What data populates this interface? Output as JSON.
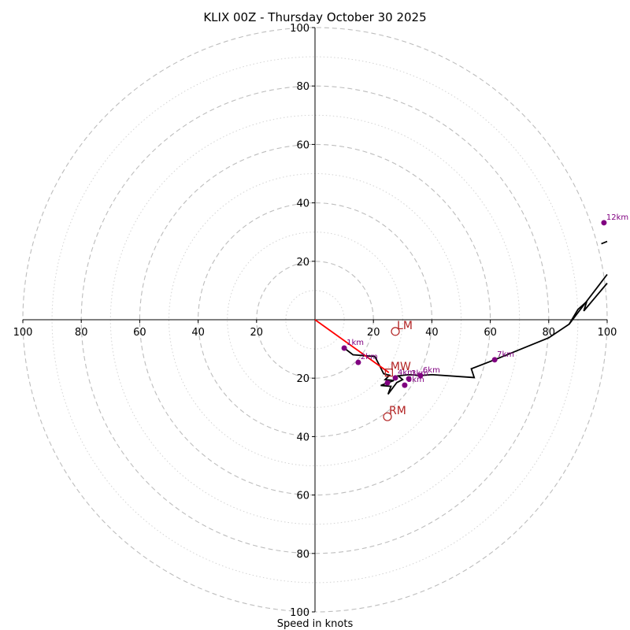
{
  "chart_data": {
    "type": "line",
    "subtype": "hodograph",
    "title": "KLIX 00Z - Thursday October 30 2025",
    "xlabel": "Speed in knots",
    "ylabel": "",
    "xlim": [
      -100,
      100
    ],
    "ylim": [
      -100,
      100
    ],
    "rings_dashed": [
      20,
      40,
      60,
      80,
      100
    ],
    "rings_dotted": [
      10,
      30,
      50,
      70,
      90
    ],
    "x_tick_labels": [
      "100",
      "80",
      "60",
      "40",
      "20",
      "20",
      "40",
      "60",
      "80",
      "100"
    ],
    "y_tick_labels": [
      "100",
      "80",
      "60",
      "40",
      "20",
      "20",
      "40",
      "60",
      "80",
      "100"
    ],
    "x_ticks": [
      -100,
      -80,
      -60,
      -40,
      -20,
      20,
      40,
      60,
      80,
      100
    ],
    "y_ticks": [
      100,
      80,
      60,
      40,
      20,
      -20,
      -40,
      -60,
      -80,
      -100
    ],
    "trace": {
      "name": "wind profile",
      "color": "#000000",
      "points": [
        [
          10.0,
          -9.7
        ],
        [
          13.0,
          -12.0
        ],
        [
          20.5,
          -12.6
        ],
        [
          22.0,
          -15.5
        ],
        [
          23.5,
          -18.5
        ],
        [
          25.5,
          -19.0
        ],
        [
          24.0,
          -20.5
        ],
        [
          27.0,
          -20.8
        ],
        [
          22.5,
          -22.5
        ],
        [
          26.0,
          -22.8
        ],
        [
          25.0,
          -25.5
        ],
        [
          28.0,
          -21.5
        ],
        [
          30.0,
          -20.5
        ],
        [
          28.5,
          -19.2
        ],
        [
          32.0,
          -18.8
        ],
        [
          36.1,
          -19.1
        ],
        [
          40.0,
          -18.8
        ],
        [
          54.5,
          -19.8
        ],
        [
          53.5,
          -16.8
        ],
        [
          61.5,
          -13.7
        ],
        [
          80.0,
          -6.2
        ],
        [
          87.0,
          -1.5
        ],
        [
          90.0,
          3.5
        ],
        [
          93.0,
          6.2
        ],
        [
          92.0,
          3.0
        ],
        [
          100.0,
          12.5
        ]
      ],
      "upper_points": [
        [
          87.0,
          -1.5
        ],
        [
          100.0,
          15.5
        ]
      ],
      "top_segment": [
        [
          98.0,
          26.0
        ],
        [
          100.0,
          26.8
        ]
      ]
    },
    "height_markers": [
      {
        "label": "1km",
        "u": 10.0,
        "v": -9.7
      },
      {
        "label": "2km",
        "u": 14.8,
        "v": -14.6
      },
      {
        "label": "3km",
        "u": 32.1,
        "v": -20.2
      },
      {
        "label": "4km",
        "u": 27.5,
        "v": -19.9
      },
      {
        "label": "5km",
        "u": 30.7,
        "v": -22.4
      },
      {
        "label": "6km",
        "u": 36.1,
        "v": -19.1
      },
      {
        "label": "",
        "u": 24.8,
        "v": -21.6
      },
      {
        "label": "7km",
        "u": 61.5,
        "v": -13.7
      },
      {
        "label": "12km",
        "u": 98.9,
        "v": 33.2
      }
    ],
    "marker_color": "#800080",
    "storm_motion": {
      "color": "#b22222",
      "LM": {
        "label": "LM",
        "u": 27.5,
        "v": -4.0
      },
      "RM": {
        "label": "RM",
        "u": 24.8,
        "v": -33.2
      },
      "MW": {
        "label": "MW",
        "u": 25.3,
        "v": -18.1
      }
    },
    "shear_vector": {
      "color": "#ff0000",
      "from": [
        0,
        0
      ],
      "to": [
        25.3,
        -18.1
      ]
    }
  }
}
